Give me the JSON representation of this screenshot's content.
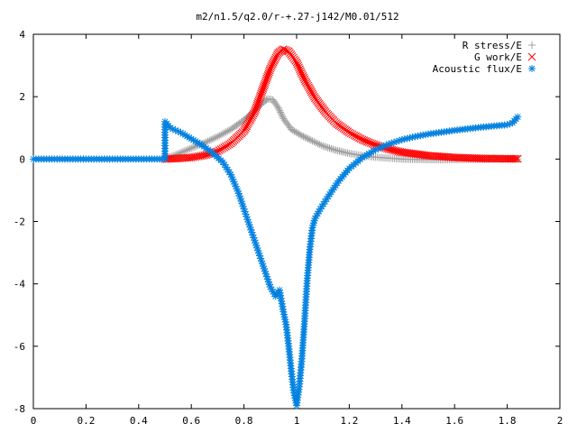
{
  "chart_data": {
    "type": "scatter",
    "title": "m2/n1.5/q2.0/r-+.27-j142/M0.01/512",
    "xlim": [
      0,
      2
    ],
    "ylim": [
      -8,
      4
    ],
    "xticks": [
      0,
      0.2,
      0.4,
      0.6,
      0.8,
      1,
      1.2,
      1.4,
      1.6,
      1.8,
      2
    ],
    "yticks": [
      -8,
      -6,
      -4,
      -2,
      0,
      2,
      4
    ],
    "xtick_labels": [
      "0",
      "0.2",
      "0.4",
      "0.6",
      "0.8",
      "1",
      "1.2",
      "1.4",
      "1.6",
      "1.8",
      "2"
    ],
    "ytick_labels": [
      "-8",
      "-6",
      "-4",
      "-2",
      "0",
      "2",
      "4"
    ],
    "grid": false,
    "legend_position": "top-right",
    "series": [
      {
        "name": "R stress/E",
        "marker": "plus",
        "color": "#a0a0a0",
        "points": [
          [
            0.5,
            0.0
          ],
          [
            0.55,
            0.17
          ],
          [
            0.6,
            0.35
          ],
          [
            0.65,
            0.52
          ],
          [
            0.7,
            0.72
          ],
          [
            0.75,
            0.95
          ],
          [
            0.8,
            1.25
          ],
          [
            0.84,
            1.55
          ],
          [
            0.87,
            1.8
          ],
          [
            0.89,
            1.93
          ],
          [
            0.91,
            1.9
          ],
          [
            0.93,
            1.65
          ],
          [
            0.95,
            1.3
          ],
          [
            0.98,
            0.95
          ],
          [
            1.02,
            0.75
          ],
          [
            1.06,
            0.58
          ],
          [
            1.1,
            0.42
          ],
          [
            1.15,
            0.28
          ],
          [
            1.2,
            0.18
          ],
          [
            1.25,
            0.11
          ],
          [
            1.3,
            0.06
          ],
          [
            1.35,
            0.03
          ],
          [
            1.4,
            0.0
          ],
          [
            1.5,
            -0.02
          ],
          [
            1.6,
            -0.02
          ],
          [
            1.7,
            -0.01
          ],
          [
            1.8,
            0.0
          ],
          [
            1.84,
            0.0
          ]
        ]
      },
      {
        "name": "G work/E",
        "marker": "cross",
        "color": "#ff0000",
        "points": [
          [
            0.5,
            0.0
          ],
          [
            0.55,
            0.02
          ],
          [
            0.6,
            0.05
          ],
          [
            0.65,
            0.12
          ],
          [
            0.7,
            0.25
          ],
          [
            0.75,
            0.5
          ],
          [
            0.8,
            0.9
          ],
          [
            0.84,
            1.5
          ],
          [
            0.87,
            2.2
          ],
          [
            0.9,
            2.9
          ],
          [
            0.93,
            3.4
          ],
          [
            0.95,
            3.52
          ],
          [
            0.97,
            3.45
          ],
          [
            1.0,
            3.1
          ],
          [
            1.03,
            2.55
          ],
          [
            1.07,
            1.95
          ],
          [
            1.11,
            1.5
          ],
          [
            1.15,
            1.15
          ],
          [
            1.2,
            0.85
          ],
          [
            1.25,
            0.62
          ],
          [
            1.3,
            0.45
          ],
          [
            1.35,
            0.32
          ],
          [
            1.4,
            0.22
          ],
          [
            1.5,
            0.11
          ],
          [
            1.6,
            0.05
          ],
          [
            1.7,
            0.02
          ],
          [
            1.8,
            0.01
          ],
          [
            1.84,
            0.01
          ]
        ]
      },
      {
        "name": "Acoustic flux/E",
        "marker": "star",
        "color": "#0080e0",
        "points": [
          [
            0.0,
            0.0
          ],
          [
            0.1,
            0.0
          ],
          [
            0.2,
            0.0
          ],
          [
            0.3,
            0.0
          ],
          [
            0.4,
            0.0
          ],
          [
            0.5,
            0.0
          ],
          [
            0.5,
            1.2
          ],
          [
            0.52,
            1.0
          ],
          [
            0.56,
            0.85
          ],
          [
            0.6,
            0.65
          ],
          [
            0.64,
            0.45
          ],
          [
            0.68,
            0.2
          ],
          [
            0.72,
            -0.1
          ],
          [
            0.75,
            -0.5
          ],
          [
            0.78,
            -1.1
          ],
          [
            0.8,
            -1.6
          ],
          [
            0.82,
            -2.1
          ],
          [
            0.84,
            -2.6
          ],
          [
            0.86,
            -3.1
          ],
          [
            0.88,
            -3.6
          ],
          [
            0.9,
            -4.1
          ],
          [
            0.92,
            -4.4
          ],
          [
            0.935,
            -4.2
          ],
          [
            0.95,
            -4.9
          ],
          [
            0.96,
            -5.3
          ],
          [
            0.97,
            -6.0
          ],
          [
            0.98,
            -6.8
          ],
          [
            0.99,
            -7.5
          ],
          [
            1.0,
            -7.9
          ],
          [
            1.01,
            -7.3
          ],
          [
            1.02,
            -6.4
          ],
          [
            1.03,
            -5.2
          ],
          [
            1.04,
            -3.9
          ],
          [
            1.05,
            -2.9
          ],
          [
            1.06,
            -2.2
          ],
          [
            1.07,
            -1.9
          ],
          [
            1.09,
            -1.6
          ],
          [
            1.12,
            -1.2
          ],
          [
            1.16,
            -0.7
          ],
          [
            1.2,
            -0.3
          ],
          [
            1.25,
            0.05
          ],
          [
            1.3,
            0.3
          ],
          [
            1.35,
            0.48
          ],
          [
            1.4,
            0.62
          ],
          [
            1.45,
            0.72
          ],
          [
            1.5,
            0.8
          ],
          [
            1.55,
            0.86
          ],
          [
            1.6,
            0.92
          ],
          [
            1.65,
            0.97
          ],
          [
            1.7,
            1.02
          ],
          [
            1.75,
            1.06
          ],
          [
            1.8,
            1.1
          ],
          [
            1.82,
            1.16
          ],
          [
            1.84,
            1.35
          ]
        ]
      }
    ]
  }
}
